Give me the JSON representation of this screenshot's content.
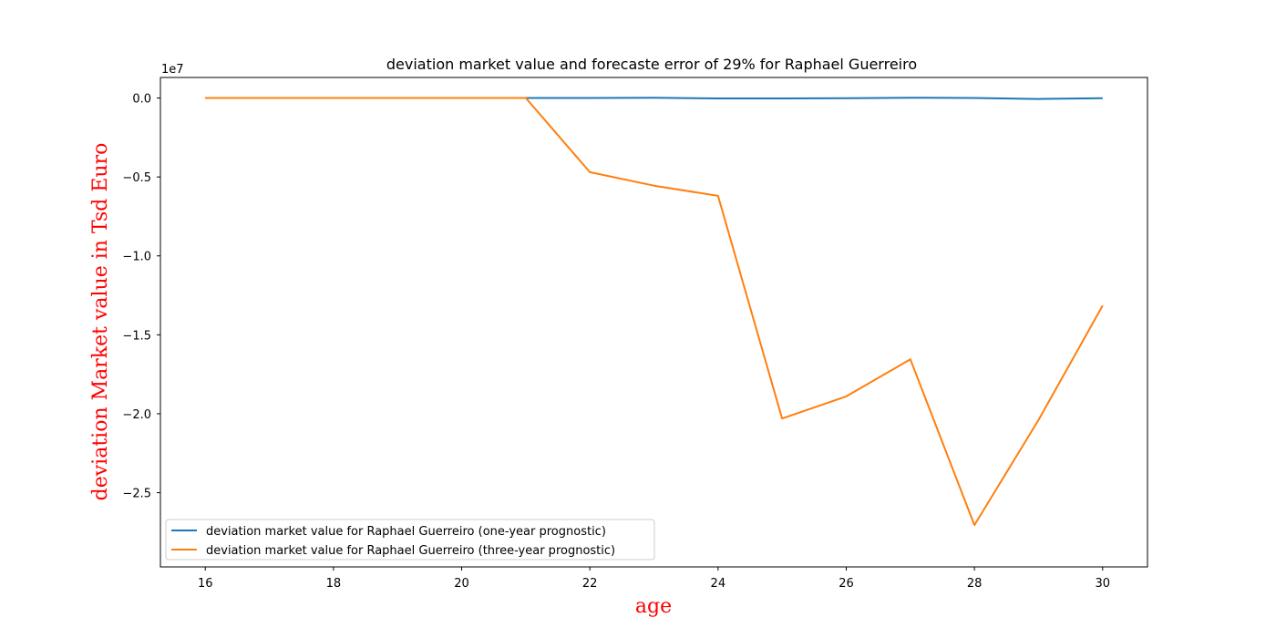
{
  "chart_data": {
    "type": "line",
    "title": "deviation market value and forecaste error of 29% for Raphael Guerreiro",
    "xlabel": "age",
    "ylabel": "deviation Market value in Tsd Euro",
    "label_color": "#ff0000",
    "offset_text": "1e7",
    "xlim": [
      15.3,
      30.7
    ],
    "ylim": [
      -29700000,
      1300000
    ],
    "x_ticks": [
      16,
      18,
      20,
      22,
      24,
      26,
      28,
      30
    ],
    "x_tick_labels": [
      "16",
      "18",
      "20",
      "22",
      "24",
      "26",
      "28",
      "30"
    ],
    "y_ticks": [
      0,
      -5000000,
      -10000000,
      -15000000,
      -20000000,
      -25000000
    ],
    "y_tick_labels": [
      "0.0",
      "−0.5",
      "−1.0",
      "−1.5",
      "−2.0",
      "−2.5"
    ],
    "grid": false,
    "legend_position": "lower-left",
    "x": [
      16,
      17,
      18,
      19,
      20,
      21,
      22,
      23,
      24,
      25,
      26,
      27,
      28,
      29,
      30
    ],
    "series": [
      {
        "name": "deviation market value for Raphael Guerreiro  (one-year prognostic)",
        "color": "#1f77b4",
        "values": [
          0,
          0,
          0,
          0,
          0,
          0,
          0,
          20000,
          -30000,
          -30000,
          -10000,
          20000,
          0,
          -60000,
          -10000
        ]
      },
      {
        "name": "deviation market value for Raphael Guerreiro  (three-year prognostic)",
        "color": "#ff7f0e",
        "values": [
          0,
          0,
          0,
          0,
          0,
          0,
          -4700000,
          -5550000,
          -6200000,
          -20300000,
          -18900000,
          -16550000,
          -27050000,
          -20400000,
          -13150000
        ]
      }
    ]
  }
}
